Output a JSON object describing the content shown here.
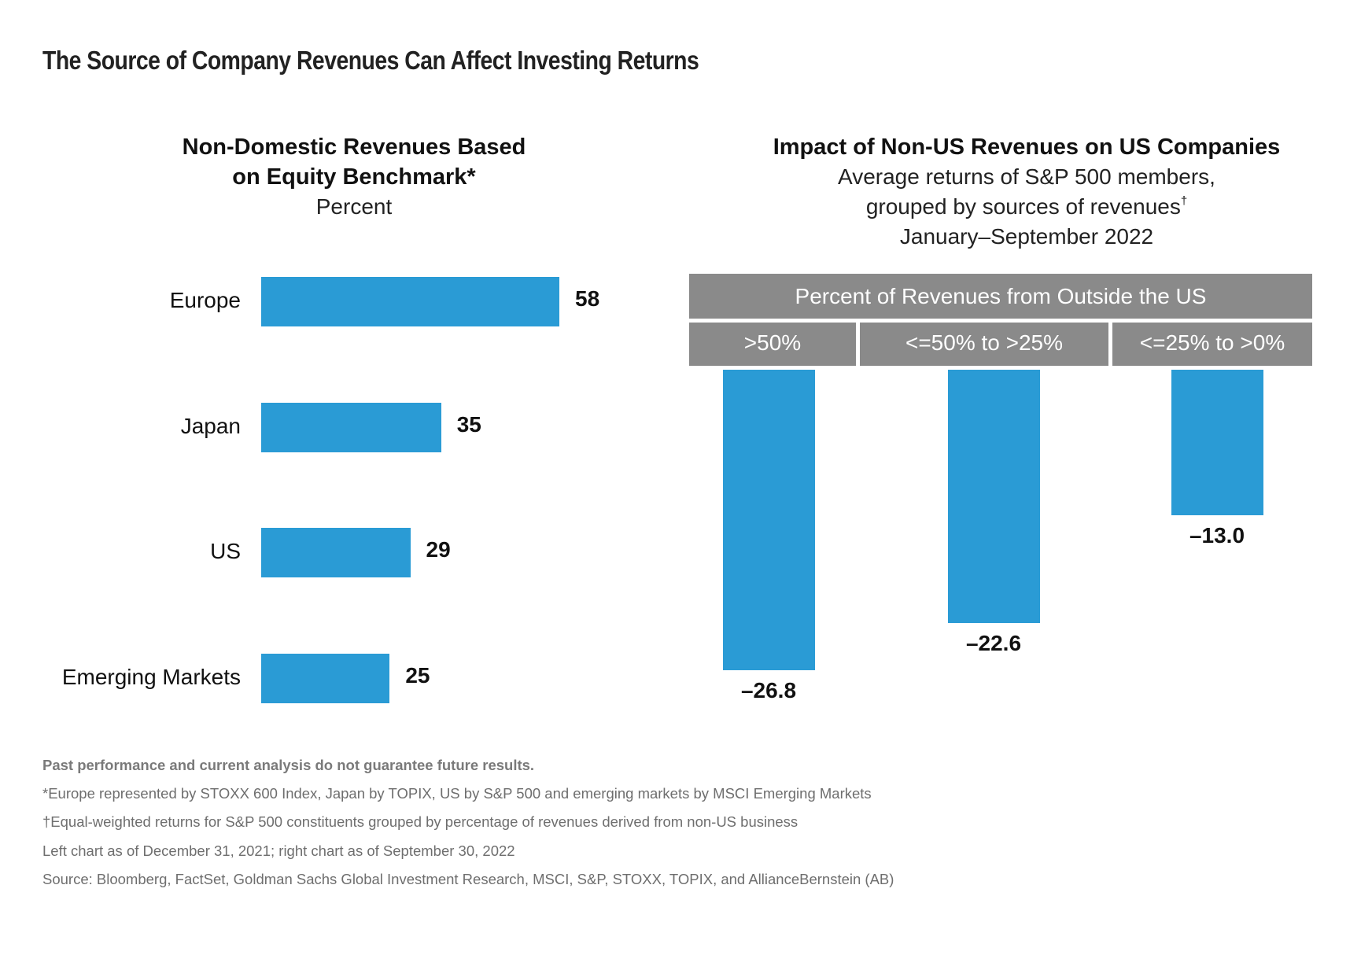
{
  "title": "The Source of Company Revenues Can Affect Investing Returns",
  "left_chart": {
    "title_line1": "Non-Domestic Revenues Based",
    "title_line2": "on Equity Benchmark*",
    "subtitle": "Percent"
  },
  "right_chart": {
    "title": "Impact of Non-US Revenues on US Companies",
    "subtitle_line1": "Average returns of S&P 500 members,",
    "subtitle_line2": "grouped by sources of revenues",
    "subtitle_line2_mark": "†",
    "subtitle_line3": "January–September 2022",
    "table_header": "Percent of Revenues from Outside the US"
  },
  "colors": {
    "bar": "#2a9bd5",
    "table_header_bg": "#8a8a8a"
  },
  "chart_data": [
    {
      "type": "bar",
      "orientation": "horizontal",
      "title": "Non-Domestic Revenues Based on Equity Benchmark*",
      "subtitle": "Percent",
      "categories": [
        "Europe",
        "Japan",
        "US",
        "Emerging Markets"
      ],
      "values": [
        58,
        35,
        29,
        25
      ],
      "value_labels": [
        "58",
        "35",
        "29",
        "25"
      ],
      "xlim": [
        0,
        58
      ],
      "grid": false,
      "axes_shown": false
    },
    {
      "type": "bar",
      "orientation": "vertical",
      "title": "Impact of Non-US Revenues on US Companies",
      "subtitle": "Average returns of S&P 500 members, grouped by sources of revenues†, January–September 2022",
      "group_header": "Percent of Revenues from Outside the US",
      "categories": [
        ">50%",
        "<=50% to >25%",
        "<=25% to >0%"
      ],
      "values": [
        -26.8,
        -22.6,
        -13.0
      ],
      "value_labels": [
        "–26.8",
        "–22.6",
        "–13.0"
      ],
      "ylim": [
        -26.8,
        0
      ],
      "grid": false,
      "axes_shown": false
    }
  ],
  "footnotes": {
    "disclaimer": "Past performance and current analysis do not guarantee future results.",
    "note1": "*Europe represented by STOXX 600 Index, Japan by TOPIX, US by S&P 500 and emerging markets by MSCI Emerging Markets",
    "note2": "†Equal-weighted returns for S&P 500 constituents grouped by percentage of revenues derived from non-US business",
    "note3": "Left chart as of December 31, 2021; right chart as of September 30, 2022",
    "source": "Source: Bloomberg, FactSet, Goldman Sachs Global Investment Research, MSCI, S&P, STOXX, TOPIX,  and AllianceBernstein (AB)"
  }
}
